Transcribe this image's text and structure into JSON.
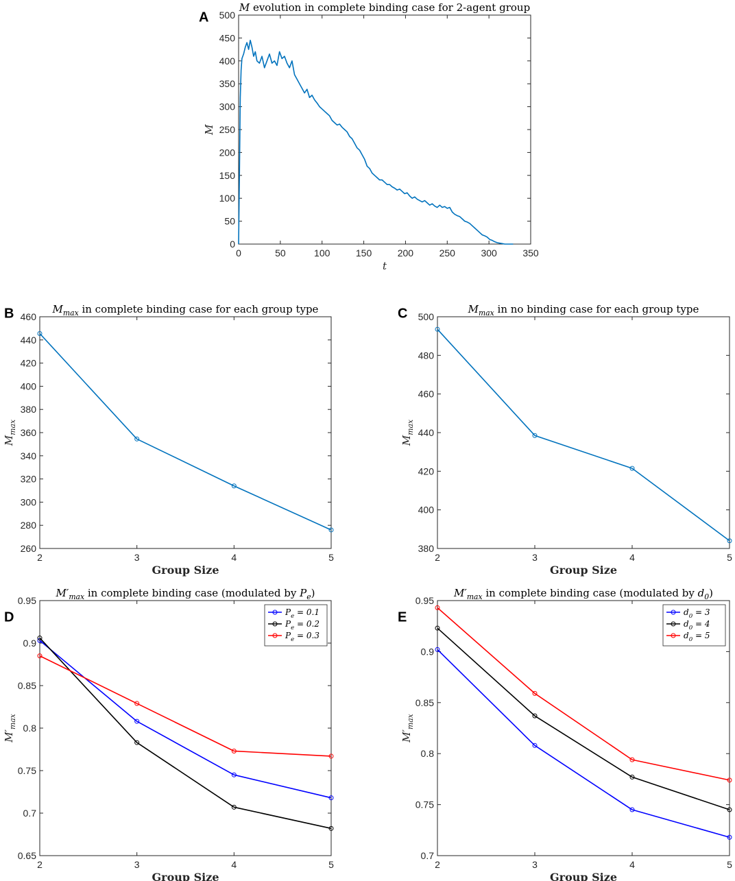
{
  "chart_data": [
    {
      "panel": "A",
      "type": "line",
      "title": "M evolution in complete binding case for 2-agent group",
      "xlabel": "t",
      "ylabel": "M",
      "xlim": [
        0,
        350
      ],
      "ylim": [
        0,
        500
      ],
      "xticks": [
        "0",
        "50",
        "100",
        "150",
        "200",
        "250",
        "300",
        "350"
      ],
      "yticks": [
        "0",
        "50",
        "100",
        "150",
        "200",
        "250",
        "300",
        "350",
        "400",
        "450",
        "500"
      ],
      "series": [
        {
          "name": "M",
          "color": "#0072BD",
          "x": [
            0,
            1,
            2,
            3,
            4,
            6,
            8,
            10,
            12,
            14,
            16,
            18,
            20,
            22,
            25,
            28,
            31,
            34,
            37,
            40,
            43,
            46,
            49,
            52,
            55,
            58,
            61,
            64,
            67,
            70,
            73,
            76,
            79,
            82,
            85,
            88,
            91,
            94,
            97,
            100,
            103,
            106,
            109,
            112,
            115,
            118,
            121,
            124,
            127,
            130,
            133,
            136,
            139,
            142,
            145,
            148,
            151,
            154,
            157,
            160,
            163,
            166,
            169,
            172,
            175,
            178,
            181,
            184,
            187,
            190,
            193,
            196,
            199,
            202,
            205,
            208,
            211,
            214,
            217,
            220,
            223,
            226,
            229,
            232,
            235,
            238,
            241,
            244,
            247,
            250,
            253,
            256,
            259,
            262,
            265,
            268,
            271,
            274,
            277,
            280,
            283,
            286,
            289,
            292,
            295,
            298,
            301,
            304,
            307,
            310,
            313,
            316,
            319,
            322,
            325,
            329
          ],
          "values": [
            0,
            150,
            320,
            380,
            405,
            415,
            430,
            440,
            425,
            445,
            430,
            410,
            420,
            400,
            395,
            410,
            385,
            400,
            415,
            395,
            400,
            390,
            420,
            405,
            410,
            395,
            385,
            400,
            370,
            360,
            350,
            340,
            330,
            338,
            320,
            325,
            315,
            308,
            300,
            295,
            290,
            285,
            280,
            270,
            265,
            260,
            262,
            255,
            250,
            245,
            235,
            230,
            220,
            210,
            205,
            195,
            185,
            170,
            165,
            155,
            150,
            145,
            140,
            140,
            135,
            130,
            130,
            125,
            122,
            118,
            120,
            115,
            110,
            112,
            105,
            100,
            103,
            98,
            95,
            92,
            95,
            90,
            85,
            88,
            83,
            80,
            85,
            80,
            82,
            78,
            80,
            70,
            65,
            62,
            60,
            55,
            50,
            48,
            45,
            40,
            35,
            30,
            25,
            20,
            18,
            15,
            10,
            8,
            5,
            3,
            2,
            1,
            0,
            0,
            0,
            0
          ]
        }
      ]
    },
    {
      "panel": "B",
      "type": "line",
      "title": "M_max in complete binding case for each group type",
      "xlabel": "Group Size",
      "ylabel": "M_max",
      "xlim": [
        2,
        5
      ],
      "ylim": [
        260,
        460
      ],
      "xticks": [
        "2",
        "3",
        "4",
        "5"
      ],
      "yticks": [
        "260",
        "280",
        "300",
        "320",
        "340",
        "360",
        "380",
        "400",
        "420",
        "440",
        "460"
      ],
      "categories": [
        2,
        3,
        4,
        5
      ],
      "series": [
        {
          "name": "M_max",
          "color": "#0072BD",
          "values": [
            445.5,
            354.5,
            314,
            276
          ]
        }
      ]
    },
    {
      "panel": "C",
      "type": "line",
      "title": "M_max in no binding case for each group type",
      "xlabel": "Group Size",
      "ylabel": "M_max",
      "xlim": [
        2,
        5
      ],
      "ylim": [
        380,
        500
      ],
      "xticks": [
        "2",
        "3",
        "4",
        "5"
      ],
      "yticks": [
        "380",
        "400",
        "420",
        "440",
        "460",
        "480",
        "500"
      ],
      "categories": [
        2,
        3,
        4,
        5
      ],
      "series": [
        {
          "name": "M_max",
          "color": "#0072BD",
          "values": [
            493.5,
            438.5,
            421.5,
            384
          ]
        }
      ]
    },
    {
      "panel": "D",
      "type": "line",
      "title": "M′_max in complete binding case (modulated by P_e)",
      "xlabel": "Group Size",
      "ylabel": "M′_max",
      "xlim": [
        2,
        5
      ],
      "ylim": [
        0.65,
        0.95
      ],
      "xticks": [
        "2",
        "3",
        "4",
        "5"
      ],
      "yticks": [
        "0.65",
        "0.7",
        "0.75",
        "0.8",
        "0.85",
        "0.9",
        "0.95"
      ],
      "legend_position": "top-right",
      "categories": [
        2,
        3,
        4,
        5
      ],
      "series": [
        {
          "name": "Pe = 0.1",
          "color": "#0000ff",
          "values": [
            0.903,
            0.808,
            0.745,
            0.718
          ]
        },
        {
          "name": "Pe = 0.2",
          "color": "#000000",
          "values": [
            0.906,
            0.783,
            0.707,
            0.682
          ]
        },
        {
          "name": "Pe = 0.3",
          "color": "#ff0000",
          "values": [
            0.885,
            0.829,
            0.773,
            0.767
          ]
        }
      ]
    },
    {
      "panel": "E",
      "type": "line",
      "title": "M′_max in complete binding case (modulated by d_0)",
      "xlabel": "Group Size",
      "ylabel": "M′_max",
      "xlim": [
        2,
        5
      ],
      "ylim": [
        0.7,
        0.95
      ],
      "xticks": [
        "2",
        "3",
        "4",
        "5"
      ],
      "yticks": [
        "0.7",
        "0.75",
        "0.8",
        "0.85",
        "0.9",
        "0.95"
      ],
      "legend_position": "top-right",
      "categories": [
        2,
        3,
        4,
        5
      ],
      "series": [
        {
          "name": "d0 = 3",
          "color": "#0000ff",
          "values": [
            0.902,
            0.808,
            0.745,
            0.718
          ]
        },
        {
          "name": "d0 = 4",
          "color": "#000000",
          "values": [
            0.923,
            0.837,
            0.777,
            0.745
          ]
        },
        {
          "name": "d0 = 5",
          "color": "#ff0000",
          "values": [
            0.943,
            0.859,
            0.794,
            0.774
          ]
        }
      ]
    }
  ]
}
